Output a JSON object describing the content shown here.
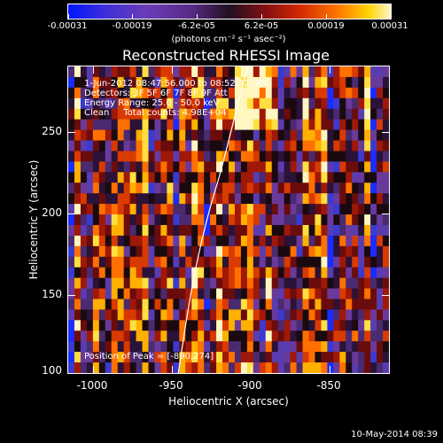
{
  "colorbar": {
    "tick_labels": [
      "-0.00031",
      "-0.00019",
      "-6.2e-05",
      "6.2e-05",
      "0.00019",
      "0.00031"
    ],
    "unit": "(photons cm⁻² s⁻¹ asec⁻²)"
  },
  "title": "Reconstructed RHESSI Image",
  "info": {
    "time_range": "1-Jun-2012 08:47:56.000 to 08:52:42.000",
    "detectors": "Detectors: 3F 5F 6F 7F 8F 9F Att",
    "energy": "Energy Range: 25.0 - 50.0 keV",
    "method": "Clean     Total counts: 4.98E+04"
  },
  "peak": "Position of Peak = [-890,274]",
  "x_axis": {
    "label": "Heliocentric X (arcsec)",
    "ticks": [
      "-1000",
      "-950",
      "-900",
      "-850"
    ]
  },
  "y_axis": {
    "label": "Heliocentric Y (arcsec)",
    "ticks": [
      "250",
      "200",
      "150",
      "100"
    ]
  },
  "stamp": "10-May-2014 08:39",
  "colors": {
    "limb_line": "#ffffff",
    "background": "#000000"
  }
}
